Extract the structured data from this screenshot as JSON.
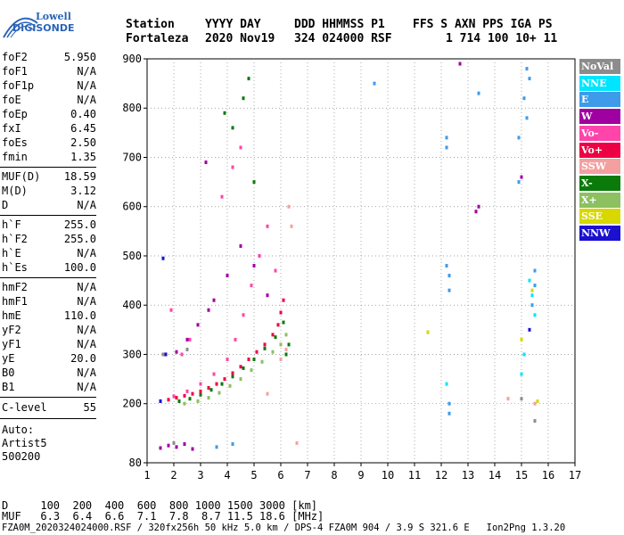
{
  "logo": {
    "line1": "Lowell",
    "line2": "DIGISONDE"
  },
  "header": {
    "row1": [
      "Station",
      "YYYY DAY",
      "DDD HHMMSS P1",
      "FFS S AXN PPS IGA PS"
    ],
    "row2": [
      "Fortaleza",
      "2020 Nov19",
      "324 024000 RSF",
      "1 714 100 10+ 11"
    ]
  },
  "params_group1": [
    {
      "name": "foF2",
      "value": "5.950"
    },
    {
      "name": "foF1",
      "value": "N/A"
    },
    {
      "name": "foF1p",
      "value": "N/A"
    },
    {
      "name": "foE",
      "value": "N/A"
    },
    {
      "name": "foEp",
      "value": "0.40"
    },
    {
      "name": "fxI",
      "value": "6.45"
    },
    {
      "name": "foEs",
      "value": "2.50"
    },
    {
      "name": "fmin",
      "value": "1.35"
    }
  ],
  "params_group2": [
    {
      "name": "MUF(D)",
      "value": "18.59"
    },
    {
      "name": "M(D)",
      "value": "3.12"
    },
    {
      "name": "D",
      "value": "N/A"
    }
  ],
  "params_group3": [
    {
      "name": "h`F",
      "value": "255.0"
    },
    {
      "name": "h`F2",
      "value": "255.0"
    },
    {
      "name": "h`E",
      "value": "N/A"
    },
    {
      "name": "h`Es",
      "value": "100.0"
    }
  ],
  "params_group4": [
    {
      "name": "hmF2",
      "value": "N/A"
    },
    {
      "name": "hmF1",
      "value": "N/A"
    },
    {
      "name": "hmE",
      "value": "110.0"
    },
    {
      "name": "yF2",
      "value": "N/A"
    },
    {
      "name": "yF1",
      "value": "N/A"
    },
    {
      "name": "yE",
      "value": "20.0"
    },
    {
      "name": "B0",
      "value": "N/A"
    },
    {
      "name": "B1",
      "value": "N/A"
    }
  ],
  "clevel": {
    "name": "C-level",
    "value": "55"
  },
  "auto": {
    "line1": "Auto:",
    "line2": "Artist5",
    "line3": "500200"
  },
  "legend": [
    {
      "label": "NoVal",
      "color": "#8c8c8c"
    },
    {
      "label": "NNE",
      "color": "#00e5ff"
    },
    {
      "label": "E",
      "color": "#3d9be9"
    },
    {
      "label": "W",
      "color": "#a000a0"
    },
    {
      "label": "Vo-",
      "color": "#ff44aa"
    },
    {
      "label": "Vo+",
      "color": "#ee0044"
    },
    {
      "label": "SSW",
      "color": "#f4a0a0"
    },
    {
      "label": "X-",
      "color": "#0a7a0a"
    },
    {
      "label": "X+",
      "color": "#8cc060"
    },
    {
      "label": "SSE",
      "color": "#d8d800"
    },
    {
      "label": "NNW",
      "color": "#1a10d0"
    }
  ],
  "chart_data": {
    "type": "scatter",
    "xlim": [
      1,
      17
    ],
    "ylim": [
      80,
      900
    ],
    "xticks": [
      1,
      2,
      3,
      4,
      5,
      6,
      7,
      8,
      9,
      10,
      11,
      12,
      13,
      14,
      15,
      16,
      17
    ],
    "yticks": [
      80,
      200,
      300,
      400,
      500,
      600,
      700,
      800,
      900
    ],
    "grid": true,
    "series": [
      {
        "name": "Vo+",
        "color": "#ee0044",
        "points": [
          [
            1.5,
            205
          ],
          [
            1.8,
            208
          ],
          [
            2.1,
            212
          ],
          [
            2.4,
            216
          ],
          [
            2.7,
            220
          ],
          [
            3.0,
            225
          ],
          [
            3.3,
            232
          ],
          [
            3.6,
            240
          ],
          [
            3.9,
            250
          ],
          [
            4.2,
            262
          ],
          [
            4.5,
            275
          ],
          [
            4.8,
            290
          ],
          [
            5.1,
            305
          ],
          [
            5.4,
            320
          ],
          [
            5.7,
            340
          ],
          [
            5.9,
            360
          ],
          [
            6.0,
            385
          ],
          [
            6.1,
            410
          ]
        ]
      },
      {
        "name": "Vo-",
        "color": "#ff44aa",
        "points": [
          [
            2.0,
            215
          ],
          [
            2.5,
            225
          ],
          [
            3.0,
            240
          ],
          [
            3.5,
            260
          ],
          [
            4.0,
            290
          ],
          [
            4.3,
            330
          ],
          [
            4.6,
            380
          ],
          [
            4.9,
            440
          ],
          [
            5.2,
            500
          ],
          [
            5.5,
            560
          ],
          [
            5.8,
            470
          ],
          [
            3.8,
            620
          ],
          [
            4.2,
            680
          ],
          [
            4.5,
            720
          ],
          [
            2.3,
            300
          ],
          [
            2.6,
            330
          ],
          [
            1.9,
            390
          ]
        ]
      },
      {
        "name": "X-",
        "color": "#0a7a0a",
        "points": [
          [
            2.2,
            205
          ],
          [
            2.6,
            210
          ],
          [
            3.0,
            218
          ],
          [
            3.4,
            228
          ],
          [
            3.8,
            240
          ],
          [
            4.2,
            255
          ],
          [
            4.6,
            272
          ],
          [
            5.0,
            290
          ],
          [
            5.4,
            312
          ],
          [
            5.8,
            335
          ],
          [
            6.1,
            365
          ],
          [
            6.2,
            300
          ],
          [
            6.3,
            320
          ],
          [
            4.6,
            820
          ],
          [
            4.8,
            860
          ],
          [
            3.9,
            790
          ],
          [
            4.2,
            760
          ],
          [
            5.0,
            650
          ]
        ]
      },
      {
        "name": "X+",
        "color": "#8cc060",
        "points": [
          [
            2.4,
            200
          ],
          [
            2.9,
            205
          ],
          [
            3.3,
            212
          ],
          [
            3.7,
            222
          ],
          [
            4.1,
            236
          ],
          [
            4.5,
            250
          ],
          [
            4.9,
            268
          ],
          [
            5.3,
            285
          ],
          [
            5.7,
            305
          ],
          [
            6.0,
            320
          ],
          [
            6.2,
            340
          ]
        ]
      },
      {
        "name": "W",
        "color": "#a000a0",
        "points": [
          [
            1.5,
            110
          ],
          [
            1.8,
            115
          ],
          [
            2.1,
            112
          ],
          [
            2.4,
            118
          ],
          [
            2.7,
            108
          ],
          [
            1.7,
            300
          ],
          [
            2.1,
            305
          ],
          [
            2.5,
            330
          ],
          [
            2.9,
            360
          ],
          [
            3.3,
            390
          ],
          [
            3.5,
            410
          ],
          [
            4.0,
            460
          ],
          [
            4.5,
            520
          ],
          [
            5.0,
            480
          ],
          [
            5.5,
            420
          ],
          [
            3.2,
            690
          ],
          [
            13.4,
            600
          ],
          [
            13.3,
            590
          ],
          [
            15.0,
            660
          ],
          [
            12.7,
            890
          ]
        ]
      },
      {
        "name": "E",
        "color": "#3d9be9",
        "points": [
          [
            3.6,
            112
          ],
          [
            4.2,
            118
          ],
          [
            12.2,
            740
          ],
          [
            12.2,
            720
          ],
          [
            12.2,
            480
          ],
          [
            12.3,
            460
          ],
          [
            12.3,
            430
          ],
          [
            12.3,
            200
          ],
          [
            12.3,
            180
          ],
          [
            13.4,
            830
          ],
          [
            15.2,
            880
          ],
          [
            15.3,
            860
          ],
          [
            15.1,
            820
          ],
          [
            15.2,
            780
          ],
          [
            15.5,
            470
          ],
          [
            15.5,
            440
          ],
          [
            15.4,
            400
          ],
          [
            9.5,
            850
          ],
          [
            14.9,
            650
          ],
          [
            14.9,
            740
          ]
        ]
      },
      {
        "name": "NNE",
        "color": "#00e5ff",
        "points": [
          [
            15.3,
            450
          ],
          [
            15.4,
            420
          ],
          [
            15.5,
            380
          ],
          [
            15.1,
            300
          ],
          [
            15.0,
            260
          ],
          [
            12.2,
            240
          ]
        ]
      },
      {
        "name": "SSW",
        "color": "#f4a0a0",
        "points": [
          [
            5.5,
            220
          ],
          [
            6.0,
            290
          ],
          [
            6.2,
            310
          ],
          [
            6.3,
            600
          ],
          [
            6.4,
            560
          ],
          [
            6.6,
            120
          ],
          [
            14.5,
            210
          ],
          [
            15.5,
            200
          ]
        ]
      },
      {
        "name": "NoVal",
        "color": "#8c8c8c",
        "points": [
          [
            1.5,
            205
          ],
          [
            1.6,
            300
          ],
          [
            2.0,
            120
          ],
          [
            2.5,
            310
          ],
          [
            15.5,
            165
          ],
          [
            11.5,
            345
          ],
          [
            15.0,
            210
          ]
        ]
      },
      {
        "name": "SSE",
        "color": "#d8d800",
        "points": [
          [
            11.5,
            345
          ],
          [
            15.0,
            330
          ],
          [
            15.4,
            430
          ],
          [
            15.6,
            205
          ]
        ]
      },
      {
        "name": "NNW",
        "color": "#1a10d0",
        "points": [
          [
            1.5,
            205
          ],
          [
            1.7,
            300
          ],
          [
            1.6,
            495
          ],
          [
            15.3,
            350
          ]
        ]
      }
    ]
  },
  "bottom": {
    "d_label": "D",
    "d_values": "100  200  400  600  800 1000 1500 3000 [km]",
    "muf_label": "MUF",
    "muf_values": "6.3  6.4  6.6  7.1  7.8  8.7 11.5 18.6 [MHz]",
    "footer": "FZA0M_2020324024000.RSF / 320fx256h 50 kHz 5.0 km / DPS-4 FZA0M 904 / 3.9 S 321.6 E   Ion2Png 1.3.20"
  }
}
